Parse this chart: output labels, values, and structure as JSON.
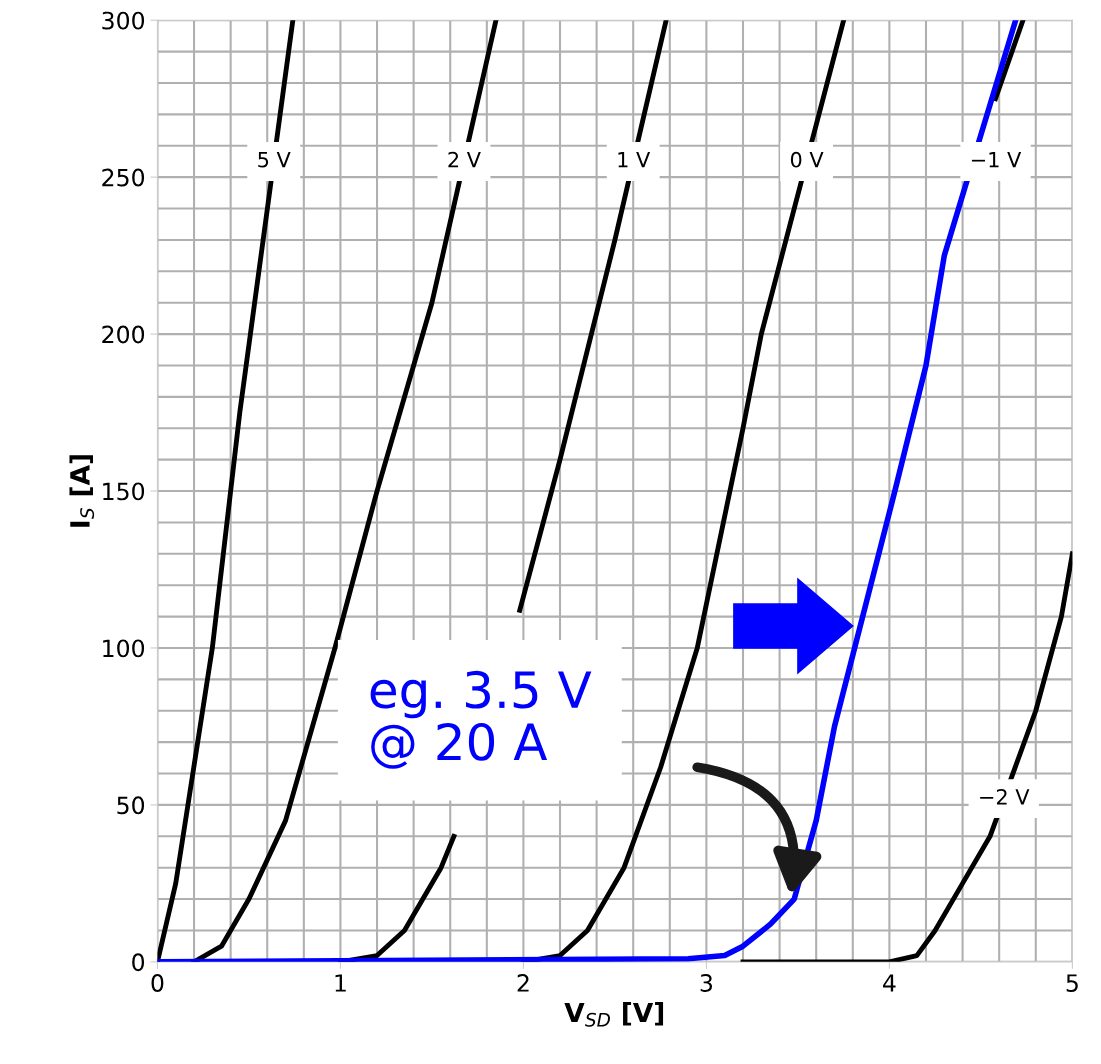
{
  "chart_data": {
    "type": "line",
    "xlabel": "V$_{SD}$ [V]",
    "ylabel": "I$_{S}$ [A]",
    "xlim": [
      0,
      5
    ],
    "ylim": [
      0,
      300
    ],
    "xticks": [
      0,
      1,
      2,
      3,
      4,
      5
    ],
    "yticks": [
      0,
      50,
      100,
      150,
      200,
      250,
      300
    ],
    "grid": true,
    "legend": false,
    "marker": "none",
    "line_style": "solid",
    "series": [
      {
        "name": "5 V",
        "color": "#000000",
        "x": [
          0,
          0.1,
          0.3,
          0.45,
          0.74
        ],
        "values": [
          0,
          25,
          100,
          175,
          300
        ]
      },
      {
        "name": "2 V",
        "color": "#000000",
        "x": [
          0.2,
          0.35,
          0.5,
          0.7,
          0.97,
          1.2,
          1.5,
          1.85
        ],
        "values": [
          0,
          5,
          20,
          45,
          100,
          150,
          210,
          300
        ]
      },
      {
        "name": "1 V",
        "color": "#000000",
        "x": [
          1.0,
          1.2,
          1.35,
          1.55,
          1.62,
          1.8,
          1.98,
          2.2,
          2.5,
          2.78
        ],
        "values": [
          0,
          2,
          10,
          30,
          40,
          null,
          112,
          160,
          230,
          300
        ]
      },
      {
        "name": "0 V",
        "color": "#000000",
        "x": [
          2.0,
          2.2,
          2.35,
          2.55,
          2.75,
          2.95,
          3.2,
          3.3,
          3.75
        ],
        "values": [
          0,
          2,
          10,
          30,
          62,
          100,
          170,
          200,
          300
        ]
      },
      {
        "name": "−1 V",
        "color": "#000000",
        "x": [
          4.58,
          4.73
        ],
        "values": [
          275,
          300
        ]
      },
      {
        "name": "−2 V",
        "color": "#000000",
        "x": [
          3.2,
          4.0,
          4.15,
          4.25,
          4.4,
          4.55,
          4.8,
          4.94,
          5.0
        ],
        "values": [
          0,
          0,
          2,
          10,
          25,
          40,
          80,
          110,
          130
        ]
      },
      {
        "color": "#0000ff",
        "x": [
          0,
          2.9,
          3.1,
          3.2,
          3.35,
          3.48,
          3.6,
          3.7,
          3.81,
          4.03,
          4.2,
          4.3,
          4.69
        ],
        "values": [
          0,
          1,
          2,
          5,
          12,
          20,
          45,
          75,
          100,
          150,
          190,
          225,
          300
        ]
      }
    ],
    "annotations": [
      "eg. 3.5 V\n@ 20 A"
    ]
  }
}
